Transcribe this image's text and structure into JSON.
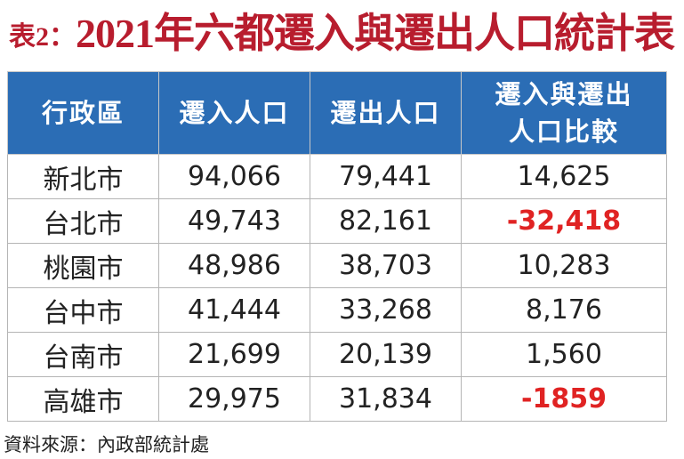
{
  "header": {
    "label": "表2：",
    "title": "2021年六都遷入與遷出人口統計表"
  },
  "table": {
    "columns": [
      "行政區",
      "遷入人口",
      "遷出人口",
      [
        "遷入與遷出",
        "人口比較"
      ]
    ],
    "rows": [
      [
        "新北市",
        "94,066",
        "79,441",
        "14,625"
      ],
      [
        "台北市",
        "49,743",
        "82,161",
        "-32,418"
      ],
      [
        "桃園市",
        "48,986",
        "38,703",
        "10,283"
      ],
      [
        "台中市",
        "41,444",
        "33,268",
        "8,176"
      ],
      [
        "台南市",
        "21,699",
        "20,139",
        "1,560"
      ],
      [
        "高雄市",
        "29,975",
        "31,834",
        "-1859"
      ]
    ]
  },
  "footer": {
    "source": "資料來源：內政部統計處"
  }
}
